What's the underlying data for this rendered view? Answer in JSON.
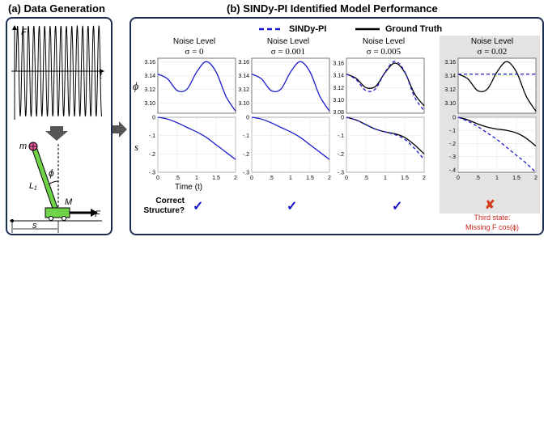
{
  "panel_a": {
    "title": "(a) Data Generation",
    "force_label": "F",
    "time_label": "t",
    "mass_label": "m",
    "angle_label": "ϕ",
    "length_label": "L₁",
    "cart_label": "M",
    "cart_force_label": "F",
    "position_label": "s"
  },
  "panel_b": {
    "title": "(b) SINDy-PI Identified Model Performance",
    "legend": {
      "model": "SINDy-PI",
      "truth": "Ground Truth"
    },
    "noise_prefix": "Noise Level",
    "noise_levels": [
      "σ = 0",
      "σ = 0.001",
      "σ = 0.005",
      "σ = 0.02"
    ],
    "row_labels": {
      "phi": "ϕ",
      "s": "s"
    },
    "x_axis_label": "Time (t)",
    "structure_label_line1": "Correct",
    "structure_label_line2": "Structure?",
    "checks": [
      "✓",
      "✓",
      "✓"
    ],
    "fail_mark": "✘",
    "fail_note_line1": "Third state:",
    "fail_note_line2": "Missing F cos(ϕ)"
  },
  "colors": {
    "model": "#1a1acc",
    "truth": "#000000",
    "frame": "#1a2e55",
    "highlight": "#e3e3e3",
    "fail": "#c8281e"
  },
  "chart_data": [
    {
      "type": "line",
      "panel": "phi",
      "noise": "σ = 0",
      "x": [
        0,
        0.25,
        0.5,
        0.75,
        1,
        1.25,
        1.5,
        1.75,
        2
      ],
      "ylim": [
        3.085,
        3.165
      ],
      "yticks": [
        3.1,
        3.12,
        3.14,
        3.16
      ],
      "series": [
        {
          "name": "Ground Truth",
          "values": [
            3.142,
            3.135,
            3.118,
            3.12,
            3.145,
            3.16,
            3.145,
            3.11,
            3.088
          ]
        },
        {
          "name": "SINDy-PI",
          "values": [
            3.142,
            3.135,
            3.118,
            3.12,
            3.145,
            3.16,
            3.145,
            3.11,
            3.088
          ]
        }
      ]
    },
    {
      "type": "line",
      "panel": "phi",
      "noise": "σ = 0.001",
      "x": [
        0,
        0.25,
        0.5,
        0.75,
        1,
        1.25,
        1.5,
        1.75,
        2
      ],
      "ylim": [
        3.085,
        3.165
      ],
      "yticks": [
        3.1,
        3.12,
        3.14,
        3.16
      ],
      "series": [
        {
          "name": "Ground Truth",
          "values": [
            3.142,
            3.135,
            3.118,
            3.12,
            3.145,
            3.16,
            3.145,
            3.11,
            3.088
          ]
        },
        {
          "name": "SINDy-PI",
          "values": [
            3.142,
            3.135,
            3.118,
            3.12,
            3.145,
            3.16,
            3.145,
            3.11,
            3.088
          ]
        }
      ]
    },
    {
      "type": "line",
      "panel": "phi",
      "noise": "σ = 0.005",
      "x": [
        0,
        0.25,
        0.5,
        0.75,
        1,
        1.25,
        1.5,
        1.75,
        2
      ],
      "ylim": [
        3.078,
        3.168
      ],
      "yticks": [
        3.08,
        3.1,
        3.12,
        3.14,
        3.16
      ],
      "series": [
        {
          "name": "Ground Truth",
          "values": [
            3.142,
            3.135,
            3.12,
            3.122,
            3.145,
            3.16,
            3.145,
            3.11,
            3.09
          ]
        },
        {
          "name": "SINDy-PI",
          "values": [
            3.142,
            3.133,
            3.115,
            3.118,
            3.146,
            3.163,
            3.146,
            3.105,
            3.082
          ]
        }
      ]
    },
    {
      "type": "line",
      "panel": "phi",
      "noise": "σ = 0.02",
      "x": [
        0,
        0.25,
        0.5,
        0.75,
        1,
        1.25,
        1.5,
        1.75,
        2
      ],
      "ylim": [
        3.085,
        3.165
      ],
      "yticks": [
        3.1,
        3.12,
        3.14,
        3.16
      ],
      "series": [
        {
          "name": "Ground Truth",
          "values": [
            3.142,
            3.135,
            3.118,
            3.12,
            3.145,
            3.16,
            3.145,
            3.11,
            3.088
          ]
        },
        {
          "name": "SINDy-PI",
          "values": [
            3.142,
            3.142,
            3.142,
            3.142,
            3.142,
            3.142,
            3.142,
            3.142,
            3.142
          ]
        }
      ]
    },
    {
      "type": "line",
      "panel": "s",
      "noise": "σ = 0",
      "x": [
        0,
        0.25,
        0.5,
        0.75,
        1,
        1.25,
        1.5,
        1.75,
        2
      ],
      "ylim": [
        -0.3,
        0
      ],
      "yticks": [
        0,
        -0.1,
        -0.2,
        -0.3
      ],
      "xticks": [
        0,
        0.5,
        1,
        1.5,
        2
      ],
      "series": [
        {
          "name": "Ground Truth",
          "values": [
            0,
            -0.01,
            -0.03,
            -0.055,
            -0.08,
            -0.11,
            -0.15,
            -0.19,
            -0.23
          ]
        },
        {
          "name": "SINDy-PI",
          "values": [
            0,
            -0.01,
            -0.03,
            -0.055,
            -0.08,
            -0.11,
            -0.15,
            -0.19,
            -0.23
          ]
        }
      ]
    },
    {
      "type": "line",
      "panel": "s",
      "noise": "σ = 0.001",
      "x": [
        0,
        0.25,
        0.5,
        0.75,
        1,
        1.25,
        1.5,
        1.75,
        2
      ],
      "ylim": [
        -0.3,
        0
      ],
      "yticks": [
        0,
        -0.1,
        -0.2,
        -0.3
      ],
      "xticks": [
        0,
        0.5,
        1,
        1.5,
        2
      ],
      "series": [
        {
          "name": "Ground Truth",
          "values": [
            0,
            -0.01,
            -0.03,
            -0.055,
            -0.08,
            -0.11,
            -0.15,
            -0.19,
            -0.23
          ]
        },
        {
          "name": "SINDy-PI",
          "values": [
            0,
            -0.01,
            -0.03,
            -0.055,
            -0.08,
            -0.11,
            -0.15,
            -0.19,
            -0.23
          ]
        }
      ]
    },
    {
      "type": "line",
      "panel": "s",
      "noise": "σ = 0.005",
      "x": [
        0,
        0.25,
        0.5,
        0.75,
        1,
        1.25,
        1.5,
        1.75,
        2
      ],
      "ylim": [
        -0.3,
        0
      ],
      "yticks": [
        0,
        -0.1,
        -0.2,
        -0.3
      ],
      "xticks": [
        0,
        0.5,
        1,
        1.5,
        2
      ],
      "series": [
        {
          "name": "Ground Truth",
          "values": [
            0,
            -0.015,
            -0.04,
            -0.065,
            -0.08,
            -0.09,
            -0.11,
            -0.15,
            -0.2
          ]
        },
        {
          "name": "SINDy-PI",
          "values": [
            0,
            -0.015,
            -0.04,
            -0.065,
            -0.08,
            -0.095,
            -0.12,
            -0.17,
            -0.23
          ]
        }
      ]
    },
    {
      "type": "line",
      "panel": "s",
      "noise": "σ = 0.02",
      "x": [
        0,
        0.25,
        0.5,
        0.75,
        1,
        1.25,
        1.5,
        1.75,
        2
      ],
      "ylim": [
        -0.42,
        0
      ],
      "yticks": [
        0,
        -0.1,
        -0.2,
        -0.3,
        -0.4
      ],
      "xticks": [
        0,
        0.5,
        1,
        1.5,
        2
      ],
      "series": [
        {
          "name": "Ground Truth",
          "values": [
            0,
            -0.02,
            -0.05,
            -0.075,
            -0.09,
            -0.1,
            -0.12,
            -0.16,
            -0.22
          ]
        },
        {
          "name": "SINDy-PI",
          "values": [
            0,
            -0.03,
            -0.07,
            -0.12,
            -0.17,
            -0.23,
            -0.29,
            -0.35,
            -0.42
          ]
        }
      ]
    }
  ]
}
